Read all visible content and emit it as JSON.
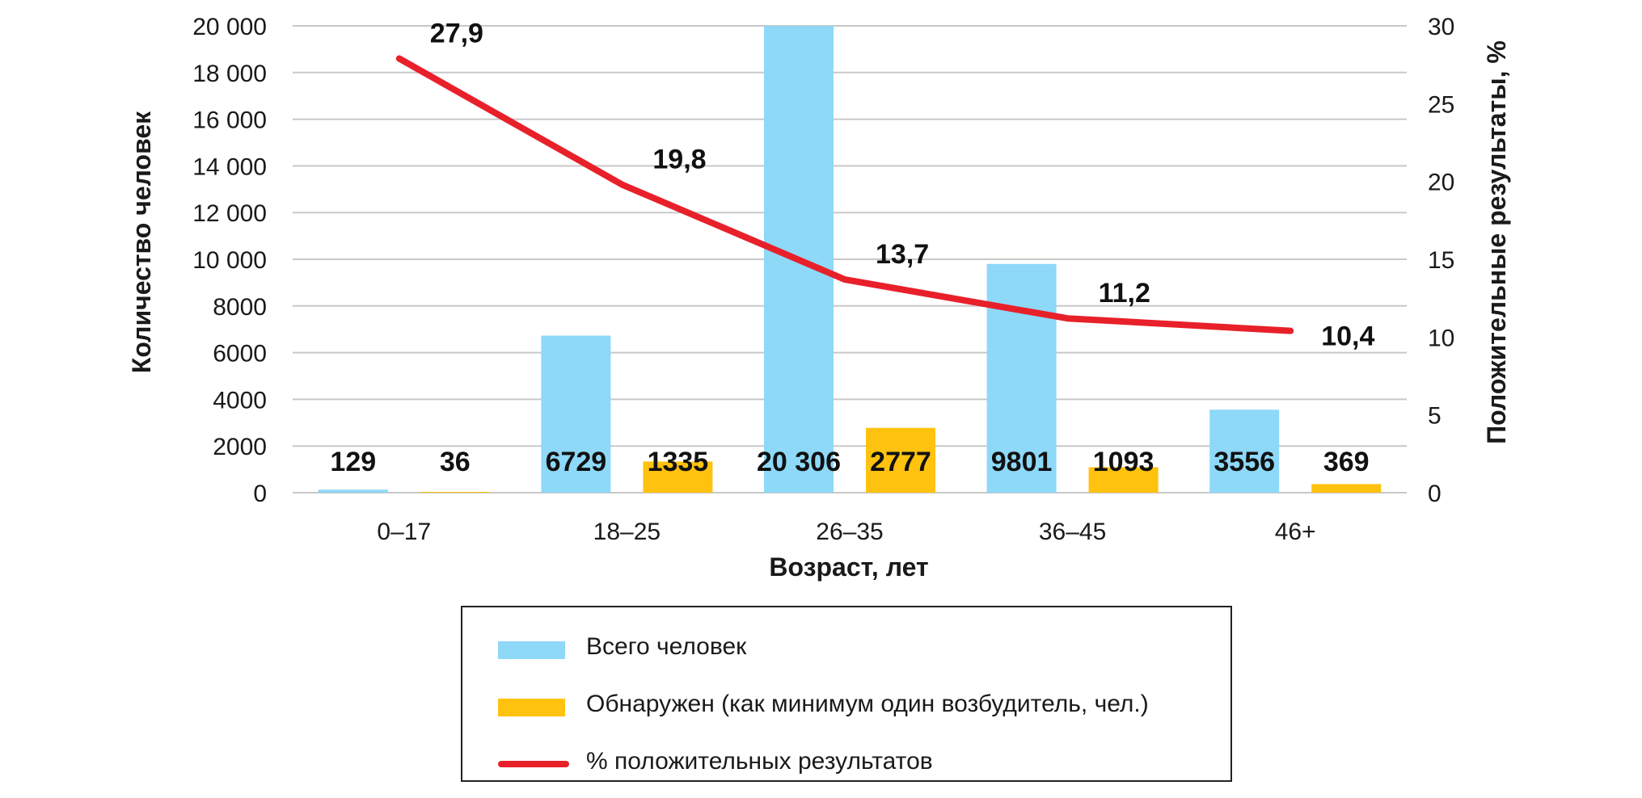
{
  "chart_data": {
    "type": "bar",
    "xlabel": "Возраст, лет",
    "ylabel": "Количество человек",
    "y2label": "Положительные результаты, %",
    "categories": [
      "0–17",
      "18–25",
      "26–35",
      "36–45",
      "46+"
    ],
    "ylim": [
      0,
      20000
    ],
    "y2lim": [
      0,
      30
    ],
    "yticks": [
      "0",
      "2000",
      "4000",
      "6000",
      "8000",
      "10 000",
      "12 000",
      "14 000",
      "16 000",
      "18 000",
      "20 000"
    ],
    "y2ticks": [
      "0",
      "5",
      "10",
      "15",
      "20",
      "25",
      "30"
    ],
    "grid": true,
    "legend_position": "bottom-center",
    "series": [
      {
        "name": "Всего человек",
        "kind": "bar",
        "axis": "left",
        "color": "#8ed8f8",
        "values": [
          129,
          6729,
          20306,
          9801,
          3556
        ],
        "labels": [
          "129",
          "6729",
          "20 306",
          "9801",
          "3556"
        ]
      },
      {
        "name": "Обнаружен (как минимум один возбудитель, чел.)",
        "kind": "bar",
        "axis": "left",
        "color": "#ffc20e",
        "values": [
          36,
          1335,
          2777,
          1093,
          369
        ],
        "labels": [
          "36",
          "1335",
          "2777",
          "1093",
          "369"
        ]
      },
      {
        "name": "% положительных результатов",
        "kind": "line",
        "axis": "right",
        "color": "#e8202a",
        "values": [
          27.9,
          19.8,
          13.7,
          11.2,
          10.4
        ],
        "labels": [
          "27,9",
          "19,8",
          "13,7",
          "11,2",
          "10,4"
        ]
      }
    ]
  }
}
